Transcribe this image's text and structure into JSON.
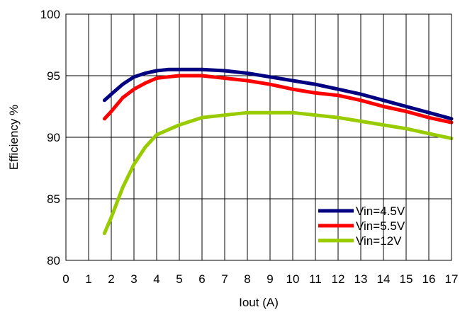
{
  "chart_data": {
    "type": "line",
    "title": "",
    "xlabel": "Iout (A)",
    "ylabel": "Efficiency %",
    "xlim": [
      0,
      17
    ],
    "ylim": [
      80,
      100
    ],
    "xticks": [
      0,
      1,
      2,
      3,
      4,
      5,
      6,
      7,
      8,
      9,
      10,
      11,
      12,
      13,
      14,
      15,
      16,
      17
    ],
    "yticks": [
      80,
      85,
      90,
      95,
      100
    ],
    "grid": true,
    "legend": "bottom-right",
    "series": [
      {
        "name": "Vin=4.5V",
        "color": "#000080",
        "x": [
          1.7,
          2.0,
          2.5,
          3.0,
          3.5,
          4.0,
          4.5,
          5.0,
          6.0,
          7.0,
          8.0,
          9.0,
          10.0,
          11.0,
          12.0,
          13.0,
          14.0,
          15.0,
          16.0,
          17.0
        ],
        "y": [
          93.0,
          93.5,
          94.3,
          94.9,
          95.2,
          95.4,
          95.5,
          95.5,
          95.5,
          95.4,
          95.2,
          94.9,
          94.6,
          94.3,
          93.9,
          93.5,
          93.0,
          92.5,
          92.0,
          91.5
        ]
      },
      {
        "name": "Vin=5.5V",
        "color": "#ff0000",
        "x": [
          1.7,
          2.0,
          2.5,
          3.0,
          3.5,
          4.0,
          4.5,
          5.0,
          6.0,
          7.0,
          8.0,
          9.0,
          10.0,
          11.0,
          12.0,
          13.0,
          14.0,
          15.0,
          16.0,
          17.0
        ],
        "y": [
          91.5,
          92.1,
          93.2,
          93.9,
          94.4,
          94.8,
          94.9,
          95.0,
          95.0,
          94.8,
          94.6,
          94.3,
          93.9,
          93.6,
          93.4,
          93.0,
          92.5,
          92.1,
          91.6,
          91.2
        ]
      },
      {
        "name": "Vin=12V",
        "color": "#99cc00",
        "x": [
          1.7,
          2.0,
          2.5,
          3.0,
          3.5,
          4.0,
          4.5,
          5.0,
          6.0,
          7.0,
          8.0,
          9.0,
          10.0,
          11.0,
          12.0,
          13.0,
          14.0,
          15.0,
          16.0,
          17.0
        ],
        "y": [
          82.2,
          83.5,
          85.9,
          87.8,
          89.2,
          90.2,
          90.6,
          91.0,
          91.6,
          91.8,
          92.0,
          92.0,
          92.0,
          91.8,
          91.6,
          91.3,
          91.0,
          90.7,
          90.3,
          89.9
        ]
      }
    ]
  }
}
